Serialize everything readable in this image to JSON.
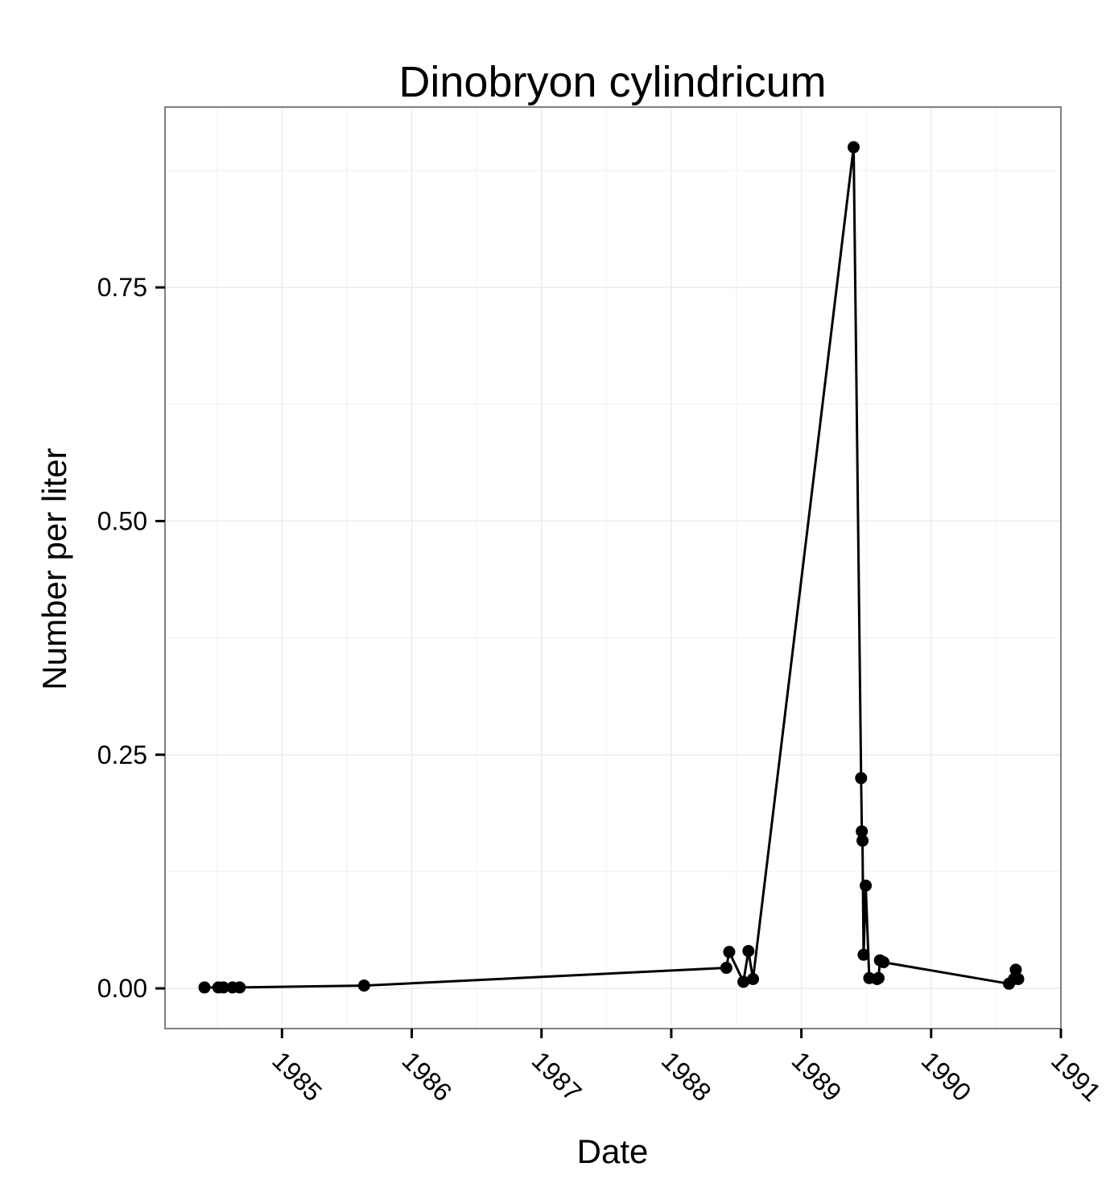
{
  "chart_data": {
    "type": "line",
    "title": "Dinobryon cylindricum",
    "xlabel": "Date",
    "ylabel": "Number per liter",
    "x_type": "date",
    "xlim": [
      "1984-02-07",
      "1991-01-01"
    ],
    "ylim": [
      -0.043,
      0.943
    ],
    "x_ticks": [
      {
        "value": "1985-01-01",
        "label": "1985"
      },
      {
        "value": "1986-01-01",
        "label": "1986"
      },
      {
        "value": "1987-01-01",
        "label": "1987"
      },
      {
        "value": "1988-01-01",
        "label": "1988"
      },
      {
        "value": "1989-01-01",
        "label": "1989"
      },
      {
        "value": "1990-01-01",
        "label": "1990"
      },
      {
        "value": "1991-01-01",
        "label": "1991"
      }
    ],
    "y_ticks": [
      {
        "value": 0.0,
        "label": "0.00"
      },
      {
        "value": 0.25,
        "label": "0.25"
      },
      {
        "value": 0.5,
        "label": "0.50"
      },
      {
        "value": 0.75,
        "label": "0.75"
      }
    ],
    "grid": true,
    "legend": "none",
    "colors": {
      "series": "#000000",
      "grid": "#ebebeb",
      "panel_border": "#7f7f7f"
    },
    "series": [
      {
        "x": [
          "1984-05-28",
          "1984-07-06",
          "1984-07-20",
          "1984-08-15",
          "1984-09-04",
          "1985-08-20",
          "1988-06-04",
          "1988-06-12",
          "1988-07-22",
          "1988-08-05",
          "1988-08-18",
          "1989-05-28",
          "1989-06-18",
          "1989-06-20",
          "1989-06-22",
          "1989-06-25",
          "1989-07-01",
          "1989-07-11",
          "1989-08-02",
          "1989-08-06",
          "1989-08-10",
          "1989-08-20",
          "1990-08-08",
          "1990-08-22",
          "1990-08-27",
          "1990-09-03"
        ],
        "y": [
          0.001,
          0.001,
          0.001,
          0.001,
          0.001,
          0.003,
          0.022,
          0.039,
          0.007,
          0.04,
          0.01,
          0.9,
          0.225,
          0.168,
          0.158,
          0.036,
          0.11,
          0.011,
          0.01,
          0.011,
          0.03,
          0.028,
          0.005,
          0.01,
          0.02,
          0.01
        ]
      }
    ]
  }
}
